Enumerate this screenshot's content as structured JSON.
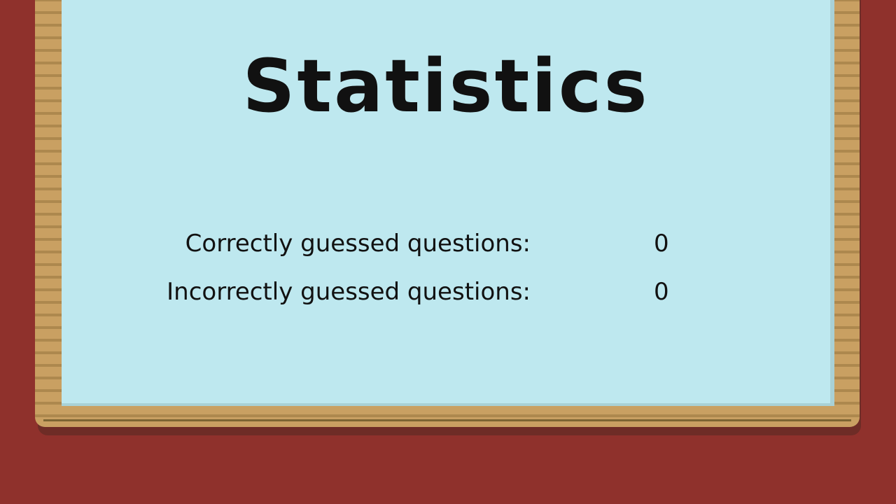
{
  "title": "Statistics",
  "stats": [
    {
      "label": "Correctly guessed questions:",
      "value": "0"
    },
    {
      "label": "Incorrectly guessed questions:",
      "value": "0"
    }
  ],
  "colors": {
    "background": "#8f312c",
    "board": "#bee8ef",
    "frame": "#c9a062"
  }
}
